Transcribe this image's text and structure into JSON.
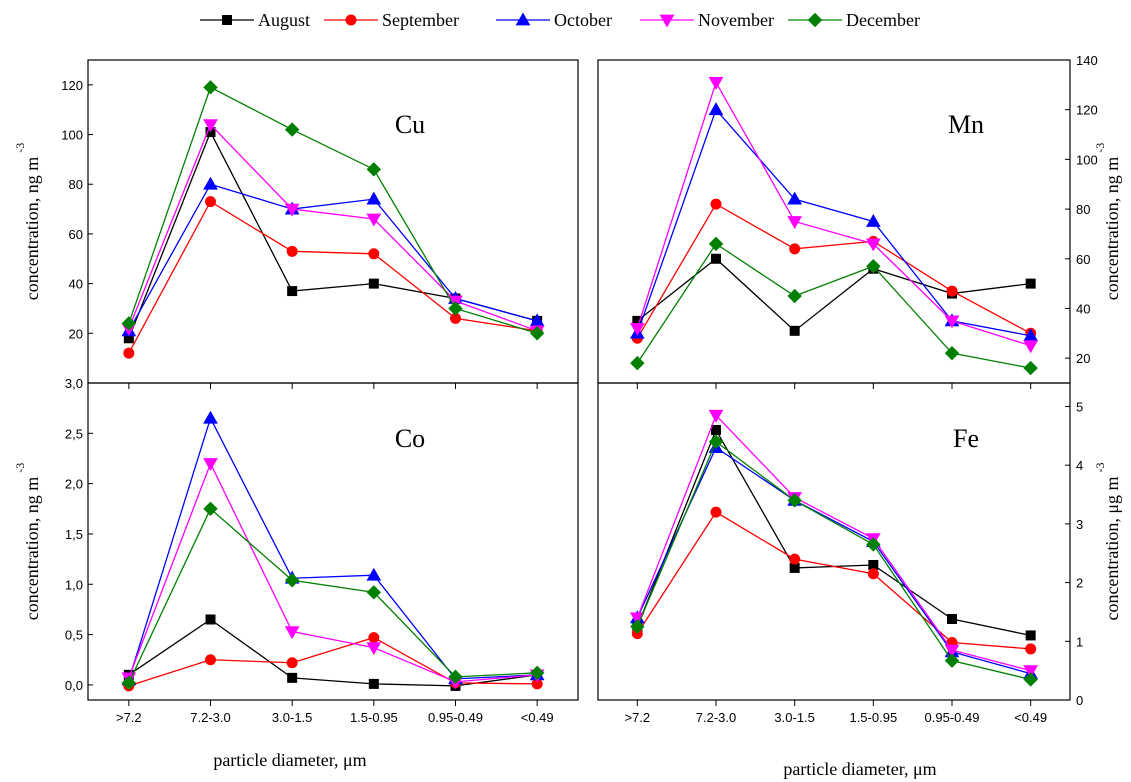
{
  "legend": [
    {
      "name": "August",
      "color": "#000000",
      "marker": "square"
    },
    {
      "name": "September",
      "color": "#ff0000",
      "marker": "circle"
    },
    {
      "name": "October",
      "color": "#0000ff",
      "marker": "triangle-up"
    },
    {
      "name": "November",
      "color": "#ff00ff",
      "marker": "triangle-down"
    },
    {
      "name": "December",
      "color": "#008000",
      "marker": "diamond"
    }
  ],
  "chart_data": [
    {
      "type": "line",
      "title": "Cu",
      "ylabel": "concentration, ng m",
      "ylabel_sup": "-3",
      "xlabel": "",
      "categories": [
        ">7.2",
        "7.2-3.0",
        "3.0-1.5",
        "1.5-0.95",
        "0.95-0.49",
        "<0.49"
      ],
      "ylim": [
        0,
        130
      ],
      "yticks": [
        "20",
        "40",
        "60",
        "80",
        "100",
        "120"
      ],
      "series": [
        {
          "name": "August",
          "values": [
            18,
            101,
            37,
            40,
            34,
            25
          ]
        },
        {
          "name": "September",
          "values": [
            12,
            73,
            53,
            52,
            26,
            21
          ]
        },
        {
          "name": "October",
          "values": [
            21,
            80,
            70,
            74,
            34,
            25
          ]
        },
        {
          "name": "November",
          "values": [
            22,
            104,
            70,
            66,
            33,
            21
          ]
        },
        {
          "name": "December",
          "values": [
            24,
            119,
            102,
            86,
            30,
            20
          ]
        }
      ]
    },
    {
      "type": "line",
      "title": "Mn",
      "ylabel": "concentration, ng m",
      "ylabel_sup": "-3",
      "xlabel": "",
      "categories": [
        ">7.2",
        "7.2-3.0",
        "3.0-1.5",
        "1.5-0.95",
        "0.95-0.49",
        "<0.49"
      ],
      "ylim": [
        10,
        140
      ],
      "yticks": [
        "20",
        "40",
        "60",
        "80",
        "100",
        "120",
        "140"
      ],
      "series": [
        {
          "name": "August",
          "values": [
            35,
            60,
            31,
            56,
            46,
            50
          ]
        },
        {
          "name": "September",
          "values": [
            28,
            82,
            64,
            67,
            47,
            30
          ]
        },
        {
          "name": "October",
          "values": [
            30,
            120,
            84,
            75,
            35,
            29
          ]
        },
        {
          "name": "November",
          "values": [
            32,
            131,
            75,
            66,
            35,
            25
          ]
        },
        {
          "name": "December",
          "values": [
            18,
            66,
            45,
            57,
            22,
            16
          ]
        }
      ]
    },
    {
      "type": "line",
      "title": "Co",
      "ylabel": "concentration, ng m",
      "ylabel_sup": "-3",
      "xlabel": "particle diameter, μm",
      "categories": [
        ">7.2",
        "7.2-3.0",
        "3.0-1.5",
        "1.5-0.95",
        "0.95-0.49",
        "<0.49"
      ],
      "ylim": [
        -0.15,
        3.0
      ],
      "yticks": [
        "0,0",
        "0,5",
        "1,0",
        "1,5",
        "2,0",
        "2,5",
        "3,0"
      ],
      "series": [
        {
          "name": "August",
          "values": [
            0.1,
            0.65,
            0.07,
            0.01,
            -0.01,
            0.1
          ]
        },
        {
          "name": "September",
          "values": [
            -0.01,
            0.25,
            0.22,
            0.47,
            0.02,
            0.01
          ]
        },
        {
          "name": "October",
          "values": [
            0.05,
            2.65,
            1.06,
            1.09,
            0.06,
            0.1
          ]
        },
        {
          "name": "November",
          "values": [
            0.07,
            2.2,
            0.53,
            0.37,
            0.03,
            0.1
          ]
        },
        {
          "name": "December",
          "values": [
            0.02,
            1.75,
            1.04,
            0.92,
            0.08,
            0.12
          ]
        }
      ]
    },
    {
      "type": "line",
      "title": "Fe",
      "ylabel": "concentration,  μg m",
      "ylabel_sup": "-3",
      "xlabel": "particle diameter, μm",
      "categories": [
        ">7.2",
        "7.2-3.0",
        "3.0-1.5",
        "1.5-0.95",
        "0.95-0.49",
        "<0.49"
      ],
      "ylim": [
        0,
        5.4
      ],
      "yticks": [
        "0",
        "1",
        "2",
        "3",
        "4",
        "5"
      ],
      "series": [
        {
          "name": "August",
          "values": [
            1.25,
            4.6,
            2.25,
            2.3,
            1.38,
            1.1
          ]
        },
        {
          "name": "September",
          "values": [
            1.13,
            3.2,
            2.4,
            2.15,
            0.98,
            0.87
          ]
        },
        {
          "name": "October",
          "values": [
            1.4,
            4.3,
            3.4,
            2.7,
            0.82,
            0.45
          ]
        },
        {
          "name": "November",
          "values": [
            1.4,
            4.85,
            3.45,
            2.75,
            0.85,
            0.5
          ]
        },
        {
          "name": "December",
          "values": [
            1.25,
            4.4,
            3.4,
            2.65,
            0.67,
            0.35
          ]
        }
      ]
    }
  ]
}
